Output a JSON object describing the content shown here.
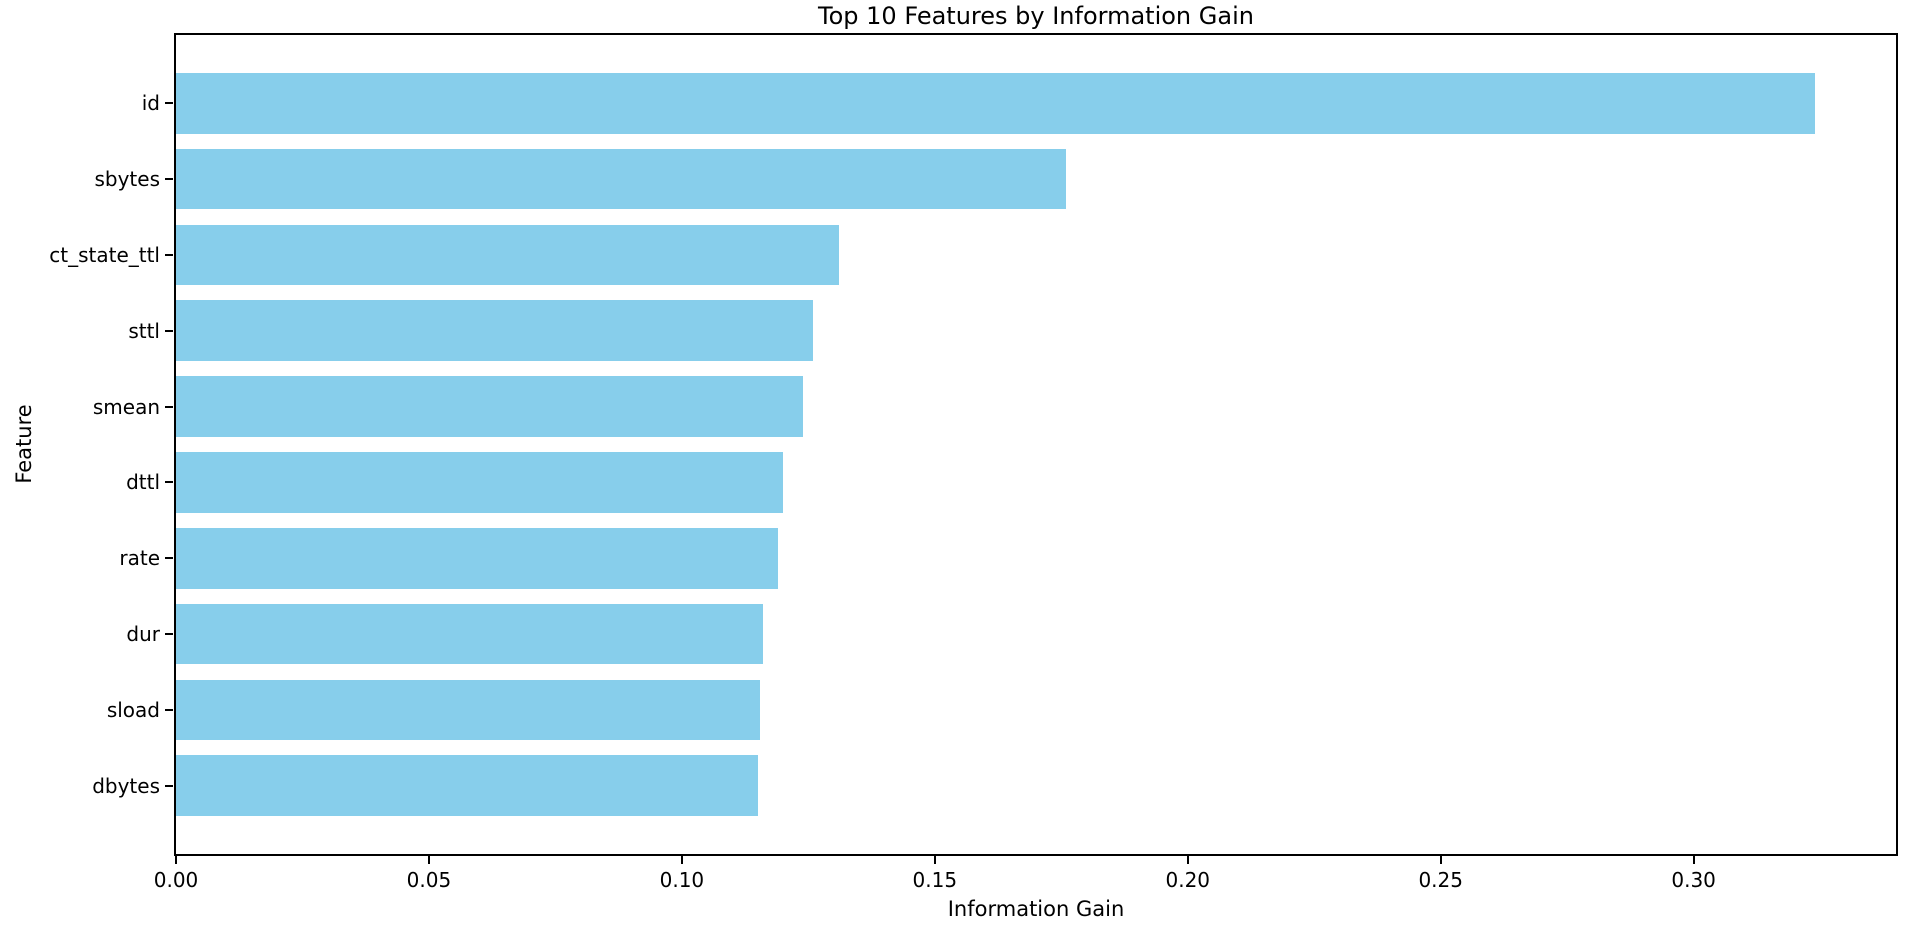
{
  "chart_data": {
    "type": "bar",
    "orientation": "horizontal",
    "title": "Top 10 Features by Information Gain",
    "xlabel": "Information Gain",
    "ylabel": "Feature",
    "categories": [
      "id",
      "sbytes",
      "ct_state_ttl",
      "sttl",
      "smean",
      "dttl",
      "rate",
      "dur",
      "sload",
      "dbytes"
    ],
    "values": [
      0.324,
      0.176,
      0.131,
      0.126,
      0.124,
      0.12,
      0.119,
      0.116,
      0.1155,
      0.115
    ],
    "xlim": [
      0,
      0.34
    ],
    "xticks": [
      0.0,
      0.05,
      0.1,
      0.15,
      0.2,
      0.25,
      0.3
    ],
    "xtick_labels": [
      "0.00",
      "0.05",
      "0.10",
      "0.15",
      "0.20",
      "0.25",
      "0.30"
    ],
    "grid": false,
    "legend": null,
    "bar_color": "#87CEEB",
    "axis_color": "#000000",
    "text_color": "#000000",
    "background_color": "#FFFFFF"
  }
}
